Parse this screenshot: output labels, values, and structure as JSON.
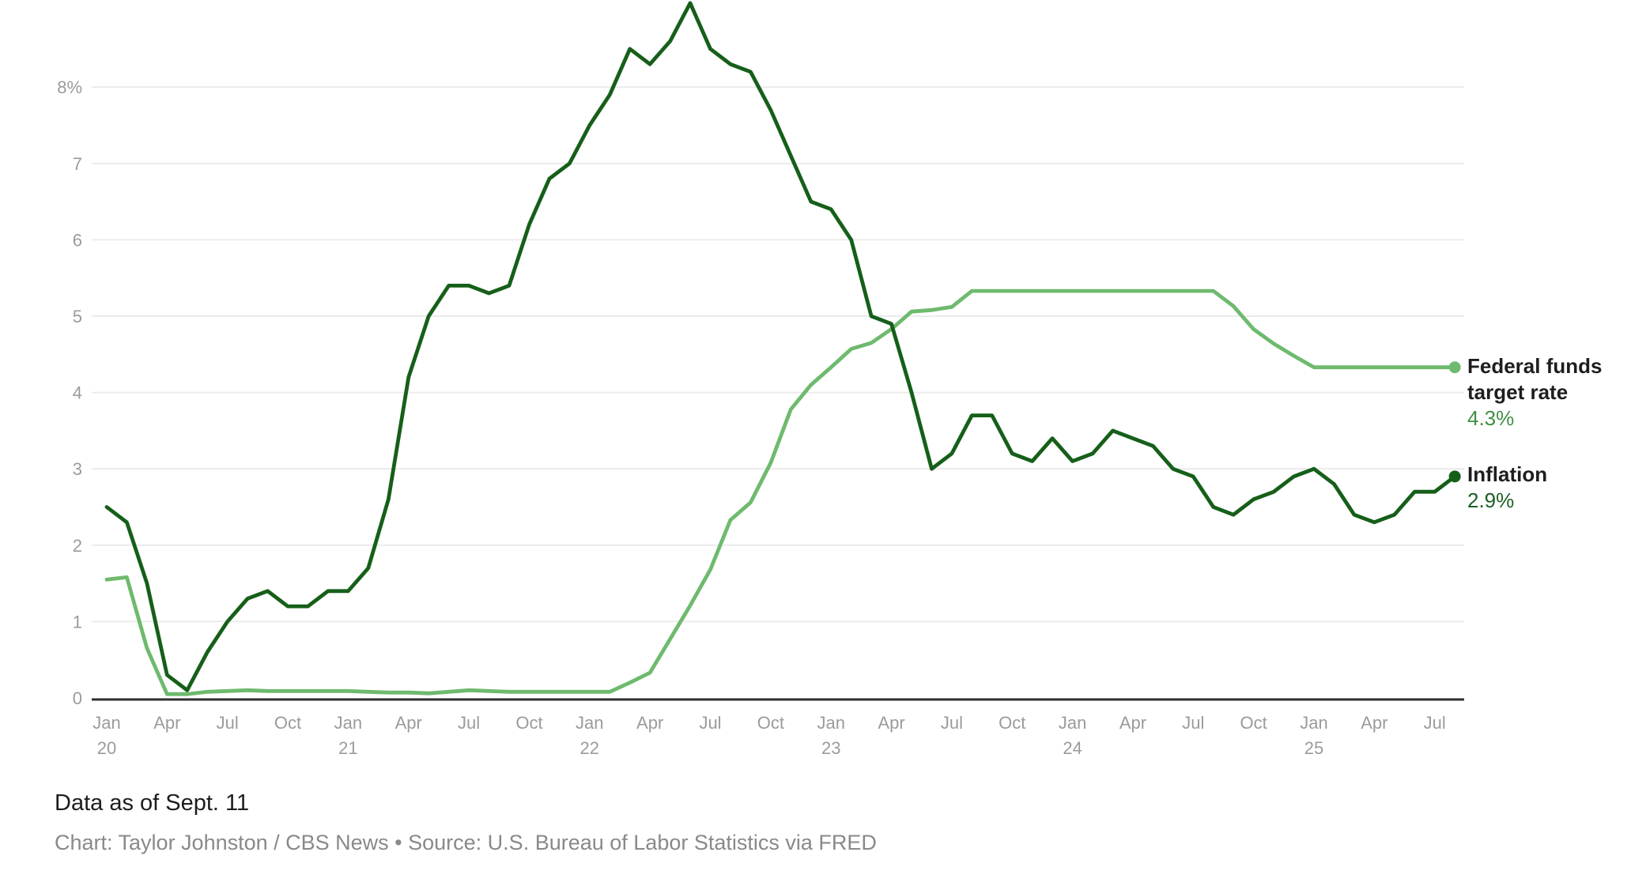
{
  "chart_data": {
    "type": "line",
    "title": "",
    "x_unit": "month",
    "x_range": [
      "Jan 2020",
      "Aug 2025"
    ],
    "ylim": [
      0,
      9.2
    ],
    "grid": true,
    "legend_position": "right",
    "yticks": [
      {
        "v": 0,
        "label": "0"
      },
      {
        "v": 1,
        "label": "1"
      },
      {
        "v": 2,
        "label": "2"
      },
      {
        "v": 3,
        "label": "3"
      },
      {
        "v": 4,
        "label": "4"
      },
      {
        "v": 5,
        "label": "5"
      },
      {
        "v": 6,
        "label": "6"
      },
      {
        "v": 7,
        "label": "7"
      },
      {
        "v": 8,
        "label": "8%"
      }
    ],
    "xticks": [
      {
        "i": 0,
        "m": "Jan",
        "y": "20"
      },
      {
        "i": 3,
        "m": "Apr"
      },
      {
        "i": 6,
        "m": "Jul"
      },
      {
        "i": 9,
        "m": "Oct"
      },
      {
        "i": 12,
        "m": "Jan",
        "y": "21"
      },
      {
        "i": 15,
        "m": "Apr"
      },
      {
        "i": 18,
        "m": "Jul"
      },
      {
        "i": 21,
        "m": "Oct"
      },
      {
        "i": 24,
        "m": "Jan",
        "y": "22"
      },
      {
        "i": 27,
        "m": "Apr"
      },
      {
        "i": 30,
        "m": "Jul"
      },
      {
        "i": 33,
        "m": "Oct"
      },
      {
        "i": 36,
        "m": "Jan",
        "y": "23"
      },
      {
        "i": 39,
        "m": "Apr"
      },
      {
        "i": 42,
        "m": "Jul"
      },
      {
        "i": 45,
        "m": "Oct"
      },
      {
        "i": 48,
        "m": "Jan",
        "y": "24"
      },
      {
        "i": 51,
        "m": "Apr"
      },
      {
        "i": 54,
        "m": "Jul"
      },
      {
        "i": 57,
        "m": "Oct"
      },
      {
        "i": 60,
        "m": "Jan",
        "y": "25"
      },
      {
        "i": 63,
        "m": "Apr"
      },
      {
        "i": 66,
        "m": "Jul"
      }
    ],
    "series": [
      {
        "id": "fed-funds-line",
        "name": "Federal funds target rate",
        "color": "#6eba6e",
        "end_label": "4.3%",
        "values": [
          1.55,
          1.58,
          0.65,
          0.05,
          0.05,
          0.08,
          0.09,
          0.1,
          0.09,
          0.09,
          0.09,
          0.09,
          0.09,
          0.08,
          0.07,
          0.07,
          0.06,
          0.08,
          0.1,
          0.09,
          0.08,
          0.08,
          0.08,
          0.08,
          0.08,
          0.08,
          0.2,
          0.33,
          0.77,
          1.21,
          1.68,
          2.33,
          2.56,
          3.08,
          3.78,
          4.1,
          4.33,
          4.57,
          4.65,
          4.83,
          5.06,
          5.08,
          5.12,
          5.33,
          5.33,
          5.33,
          5.33,
          5.33,
          5.33,
          5.33,
          5.33,
          5.33,
          5.33,
          5.33,
          5.33,
          5.33,
          5.13,
          4.83,
          4.64,
          4.48,
          4.33,
          4.33,
          4.33,
          4.33,
          4.33,
          4.33,
          4.33,
          4.33
        ]
      },
      {
        "id": "inflation-line",
        "name": "Inflation",
        "color": "#165f19",
        "end_label": "2.9%",
        "values": [
          2.5,
          2.3,
          1.5,
          0.3,
          0.1,
          0.6,
          1.0,
          1.3,
          1.4,
          1.2,
          1.2,
          1.4,
          1.4,
          1.7,
          2.6,
          4.2,
          5.0,
          5.4,
          5.4,
          5.3,
          5.4,
          6.2,
          6.8,
          7.0,
          7.5,
          7.9,
          8.5,
          8.3,
          8.6,
          9.1,
          8.5,
          8.3,
          8.2,
          7.7,
          7.1,
          6.5,
          6.4,
          6.0,
          5.0,
          4.9,
          4.0,
          3.0,
          3.2,
          3.7,
          3.7,
          3.2,
          3.1,
          3.4,
          3.1,
          3.2,
          3.5,
          3.4,
          3.3,
          3.0,
          2.9,
          2.5,
          2.4,
          2.6,
          2.7,
          2.9,
          3.0,
          2.8,
          2.4,
          2.3,
          2.4,
          2.7,
          2.7,
          2.9
        ]
      }
    ]
  },
  "legend": {
    "fed": {
      "line1": "Federal funds",
      "line2": "target rate",
      "value": "4.3%"
    },
    "inflation": {
      "label": "Inflation",
      "value": "2.9%"
    }
  },
  "footer": {
    "note": "Data as of Sept. 11",
    "credit": "Chart: Taylor Johnston / CBS News • Source: U.S. Bureau of Labor Statistics via FRED"
  },
  "colors": {
    "inflation_line": "#165f19",
    "fed_funds_line": "#6eba6e",
    "fed_value_text": "#3f8f43",
    "inflation_value_text": "#1c5e24",
    "axis_text": "#9b9b9b",
    "gridline": "#eaeaea",
    "baseline": "#2f2f2f",
    "label_text": "#1e1e1e",
    "credit_text": "#898989"
  }
}
